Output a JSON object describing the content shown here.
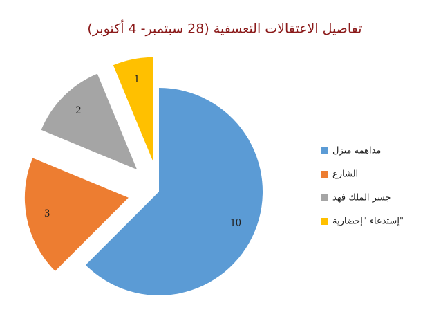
{
  "chart_data": {
    "type": "pie",
    "title": "تفاصيل الاعتقالات التعسفية (28 سبتمبر- 4 أكتوبر)",
    "categories": [
      "مداهمة منزل",
      "الشارع",
      "جسر الملك فهد",
      "إستدعاء \"إحضارية\""
    ],
    "values": [
      10,
      3,
      2,
      1
    ],
    "colors": [
      "#5b9bd5",
      "#ed7d31",
      "#a5a5a5",
      "#ffc000"
    ],
    "legend": "right"
  }
}
